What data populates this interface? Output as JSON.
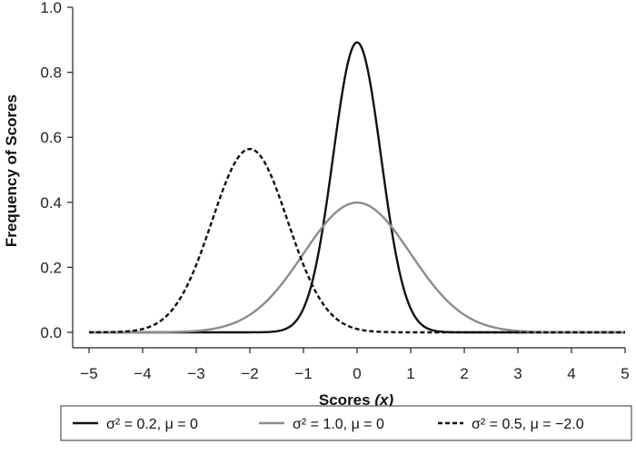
{
  "chart_data": {
    "type": "line",
    "xlabel": "Scores",
    "xlabel_var": "(x)",
    "ylabel": "Frequency of Scores",
    "xlim": [
      -5,
      5
    ],
    "ylim": [
      0,
      1.0
    ],
    "x_ticks": [
      "−5",
      "−4",
      "−3",
      "−2",
      "−1",
      "0",
      "1",
      "2",
      "3",
      "4",
      "5"
    ],
    "y_ticks": [
      "0.0",
      "0.2",
      "0.4",
      "0.6",
      "0.8",
      "1.0"
    ],
    "grid": false,
    "legend_position": "bottom",
    "series": [
      {
        "name": "σ² = 0.2, μ = 0",
        "variance": 0.2,
        "mean": 0,
        "color": "#111111",
        "style": "solid"
      },
      {
        "name": "σ² = 1.0, μ = 0",
        "variance": 1.0,
        "mean": 0,
        "color": "#8c8c8c",
        "style": "solid"
      },
      {
        "name": "σ² = 0.5, μ = −2.0",
        "variance": 0.5,
        "mean": -2.0,
        "color": "#111111",
        "style": "dashed"
      }
    ]
  }
}
